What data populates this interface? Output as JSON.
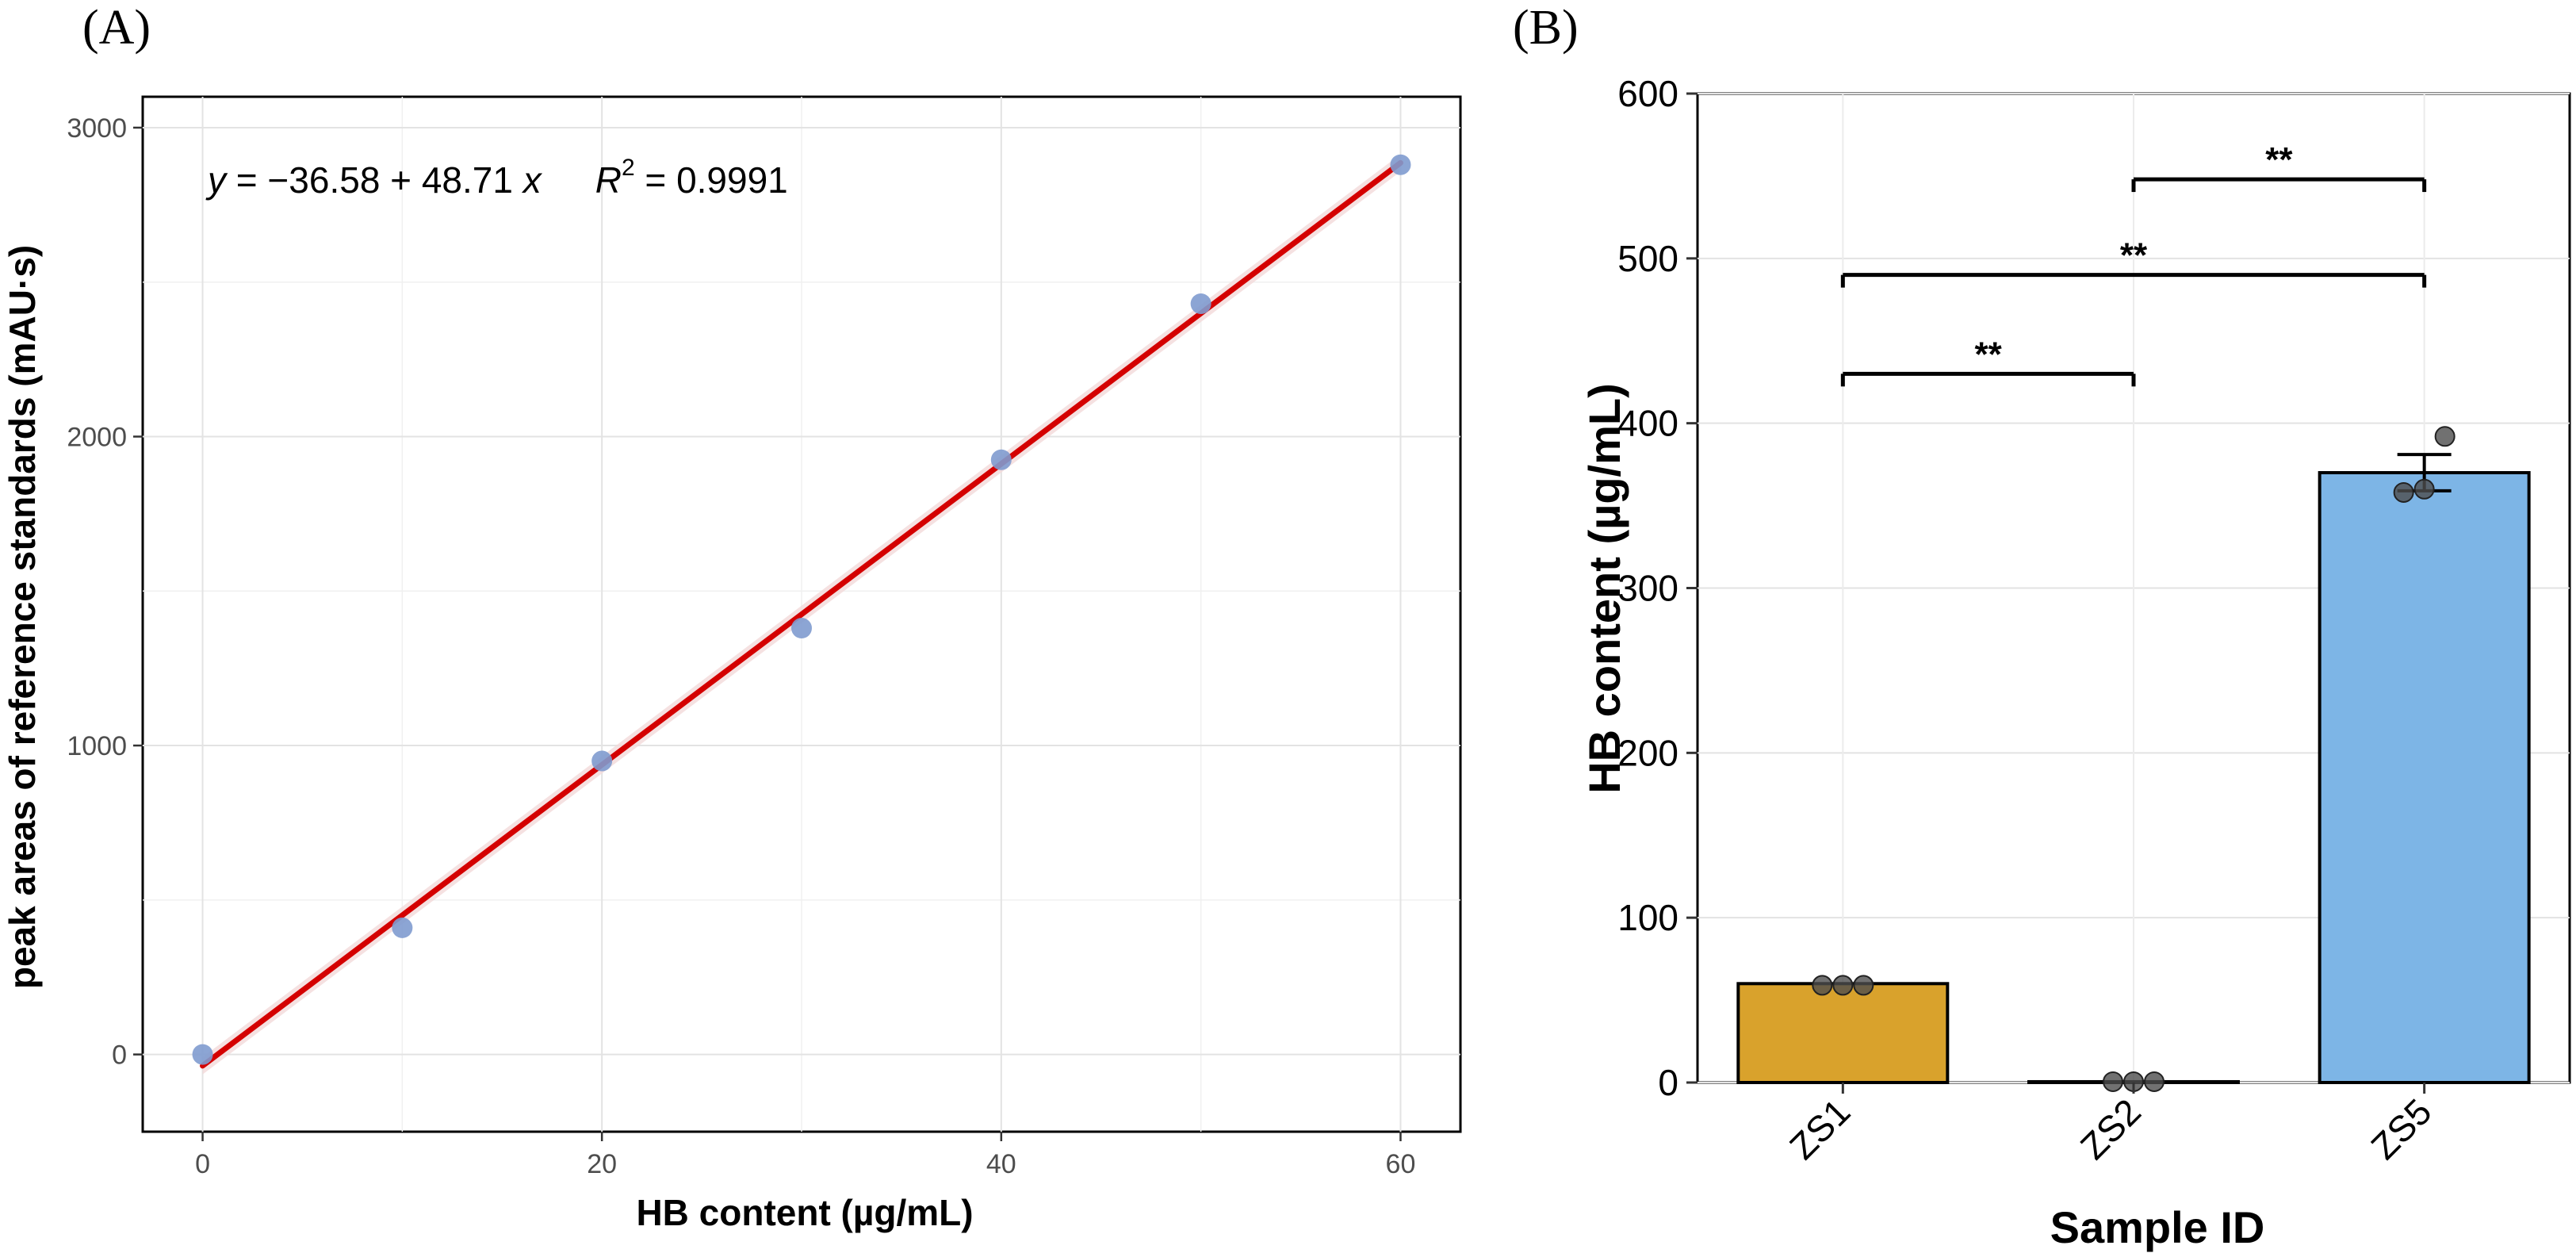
{
  "panels": {
    "a_label": "(A)",
    "b_label": "(B)"
  },
  "chart_data": [
    {
      "type": "scatter",
      "panel": "(A)",
      "title": "",
      "xlabel": "HB content (µg/mL)",
      "ylabel": "peak areas of reference standards (mAU·s)",
      "xlim": [
        -3,
        63
      ],
      "ylim": [
        -250,
        3100
      ],
      "xticks": [
        0,
        20,
        40,
        60
      ],
      "yticks": [
        0,
        1000,
        2000,
        3000
      ],
      "grid": true,
      "points": [
        {
          "x": 0,
          "y": 0
        },
        {
          "x": 10,
          "y": 410
        },
        {
          "x": 20,
          "y": 950
        },
        {
          "x": 30,
          "y": 1380
        },
        {
          "x": 40,
          "y": 1925
        },
        {
          "x": 50,
          "y": 2430
        },
        {
          "x": 60,
          "y": 2880
        }
      ],
      "fit": {
        "intercept": -36.58,
        "slope": 48.71,
        "r2": 0.9991
      },
      "annotation": {
        "y_var": "y",
        "eq_mid": " = −36.58 + 48.71 ",
        "x_var": "x",
        "r_var": "R",
        "r_sup": "2",
        "r_val": " = 0.9991"
      },
      "colors": {
        "points": "#7f9bcf",
        "fit_line": "#d40000",
        "ci_band": "#f2d9d9"
      }
    },
    {
      "type": "bar",
      "panel": "(B)",
      "title": "",
      "xlabel": "Sample ID",
      "ylabel": "HB content (µg/mL)",
      "ylim": [
        0,
        600
      ],
      "yticks": [
        0,
        100,
        200,
        300,
        400,
        500,
        600
      ],
      "grid": true,
      "categories": [
        "ZS1",
        "ZS2",
        "ZS5"
      ],
      "values": [
        60,
        0.5,
        370
      ],
      "errors": [
        1,
        0.3,
        11
      ],
      "replicates": [
        [
          59,
          59,
          59
        ],
        [
          0.5,
          0.5,
          0.5
        ],
        [
          358,
          360,
          392
        ]
      ],
      "colors": [
        "#d9a22c",
        "#e0e0e0",
        "#7db5e6"
      ],
      "significance": [
        {
          "from": "ZS1",
          "to": "ZS2",
          "y": 430,
          "label": "**"
        },
        {
          "from": "ZS1",
          "to": "ZS5",
          "y": 490,
          "label": "**"
        },
        {
          "from": "ZS2",
          "to": "ZS5",
          "y": 548,
          "label": "**"
        }
      ]
    }
  ]
}
